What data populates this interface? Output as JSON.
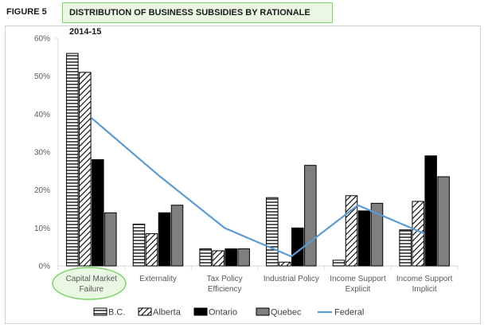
{
  "header": {
    "figure_label": "FIGURE 5",
    "title": "DISTRIBUTION OF BUSINESS SUBSIDIES BY RATIONALE 2014-15"
  },
  "colors": {
    "highlight_fill": "#eaf7e2",
    "highlight_border": "#7fd36b",
    "ontario": "#000000",
    "quebec": "#7f7f7f",
    "federal": "#5b9bd5",
    "axis": "#d9d9d9"
  },
  "chart_data": {
    "type": "bar",
    "title": "",
    "xlabel": "",
    "ylabel": "",
    "ylim": [
      0,
      60
    ],
    "yticks": [
      "0%",
      "10%",
      "20%",
      "30%",
      "40%",
      "50%",
      "60%"
    ],
    "grid": false,
    "legend_position": "bottom",
    "categories": [
      [
        "Capital Market",
        "Failure"
      ],
      [
        "Externality"
      ],
      [
        "Tax Policy",
        "Efficiency"
      ],
      [
        "Industrial Policy"
      ],
      [
        "Income Support",
        "Explicit"
      ],
      [
        "Income Support",
        "Implicit"
      ]
    ],
    "series": [
      {
        "name": "B.C.",
        "style": "horizontal-hatch",
        "values": [
          56,
          11,
          4.5,
          18,
          1.5,
          9.5
        ]
      },
      {
        "name": "Alberta",
        "style": "diagonal-hatch",
        "values": [
          51,
          8.5,
          4,
          1,
          18.5,
          17
        ]
      },
      {
        "name": "Ontario",
        "style": "solid-black",
        "values": [
          28,
          14,
          4.5,
          10,
          14.5,
          29
        ]
      },
      {
        "name": "Quebec",
        "style": "solid-gray",
        "values": [
          14,
          16,
          4.5,
          26.5,
          16.5,
          23.5
        ]
      }
    ],
    "line_series": {
      "name": "Federal",
      "values": [
        39,
        24,
        10,
        2.5,
        16,
        8.5
      ]
    }
  }
}
